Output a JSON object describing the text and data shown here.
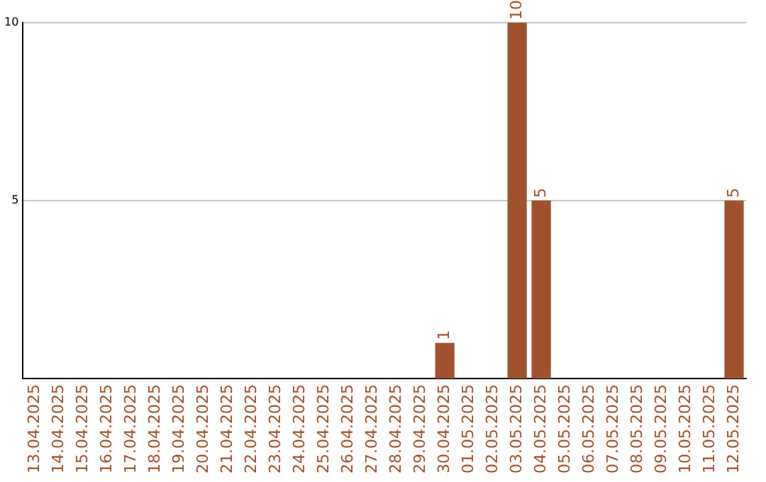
{
  "chart_data": {
    "type": "bar",
    "categories": [
      "13.04.2025",
      "14.04.2025",
      "15.04.2025",
      "16.04.2025",
      "17.04.2025",
      "18.04.2025",
      "19.04.2025",
      "20.04.2025",
      "21.04.2025",
      "22.04.2025",
      "23.04.2025",
      "24.04.2025",
      "25.04.2025",
      "26.04.2025",
      "27.04.2025",
      "28.04.2025",
      "29.04.2025",
      "30.04.2025",
      "01.05.2025",
      "02.05.2025",
      "03.05.2025",
      "04.05.2025",
      "05.05.2025",
      "06.05.2025",
      "07.05.2025",
      "08.05.2025",
      "09.05.2025",
      "10.05.2025",
      "11.05.2025",
      "12.05.2025"
    ],
    "values": [
      0,
      0,
      0,
      0,
      0,
      0,
      0,
      0,
      0,
      0,
      0,
      0,
      0,
      0,
      0,
      0,
      0,
      1,
      0,
      0,
      10,
      5,
      0,
      0,
      0,
      0,
      0,
      0,
      0,
      5
    ],
    "value_labels": [
      null,
      null,
      null,
      null,
      null,
      null,
      null,
      null,
      null,
      null,
      null,
      null,
      null,
      null,
      null,
      null,
      null,
      "1",
      null,
      null,
      "10",
      "5",
      null,
      null,
      null,
      null,
      null,
      null,
      null,
      "5"
    ],
    "color": "#a0522d",
    "ylim": [
      0,
      10
    ],
    "yticks": [
      5,
      10
    ],
    "grid": "y",
    "legend": false
  }
}
